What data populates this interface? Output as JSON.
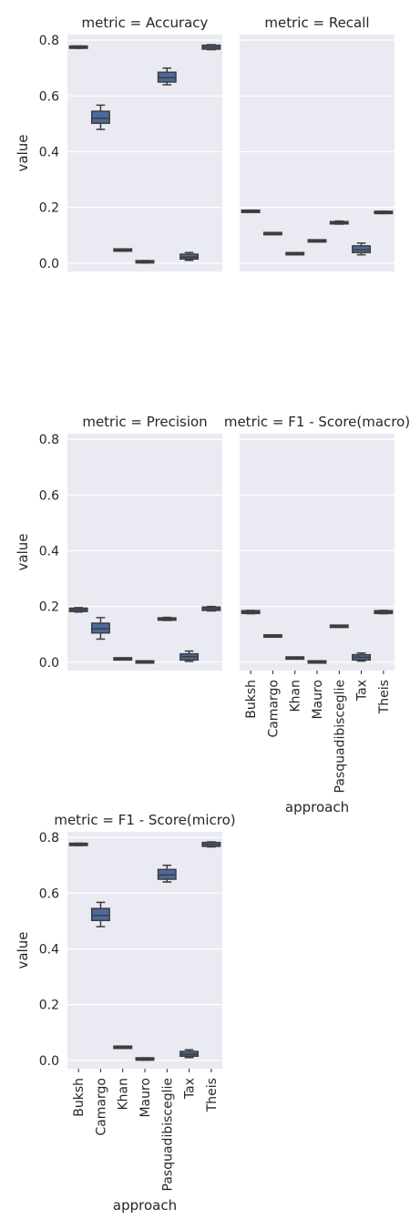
{
  "chart_data": [
    {
      "type": "box",
      "title": "metric = Accuracy",
      "ylabel": "value",
      "xlabel": "",
      "ylim": [
        -0.03,
        0.82
      ],
      "yticks": [
        "0.0",
        "0.2",
        "0.4",
        "0.6",
        "0.8"
      ],
      "show_x_tick_labels": false,
      "show_y_tick_labels": true,
      "categories": [
        "Buksh",
        "Camargo",
        "Khan",
        "Mauro",
        "Pasquadibisceglie",
        "Tax",
        "Theis"
      ],
      "boxes": [
        {
          "category": "Buksh",
          "min": 0.771,
          "q1": 0.773,
          "median": 0.775,
          "q3": 0.777,
          "max": 0.779
        },
        {
          "category": "Camargo",
          "min": 0.48,
          "q1": 0.502,
          "median": 0.52,
          "q3": 0.545,
          "max": 0.567
        },
        {
          "category": "Khan",
          "min": 0.043,
          "q1": 0.045,
          "median": 0.047,
          "q3": 0.049,
          "max": 0.051
        },
        {
          "category": "Mauro",
          "min": 0.001,
          "q1": 0.003,
          "median": 0.005,
          "q3": 0.007,
          "max": 0.009
        },
        {
          "category": "Pasquadibisceglie",
          "min": 0.64,
          "q1": 0.65,
          "median": 0.665,
          "q3": 0.685,
          "max": 0.7
        },
        {
          "category": "Tax",
          "min": 0.01,
          "q1": 0.015,
          "median": 0.022,
          "q3": 0.032,
          "max": 0.038
        },
        {
          "category": "Theis",
          "min": 0.766,
          "q1": 0.768,
          "median": 0.775,
          "q3": 0.782,
          "max": 0.784
        }
      ]
    },
    {
      "type": "box",
      "title": "metric = Recall",
      "ylabel": "",
      "xlabel": "",
      "ylim": [
        -0.03,
        0.82
      ],
      "yticks": [
        "0.0",
        "0.2",
        "0.4",
        "0.6",
        "0.8"
      ],
      "show_x_tick_labels": false,
      "show_y_tick_labels": false,
      "categories": [
        "Buksh",
        "Camargo",
        "Khan",
        "Mauro",
        "Pasquadibisceglie",
        "Tax",
        "Theis"
      ],
      "boxes": [
        {
          "category": "Buksh",
          "min": 0.183,
          "q1": 0.184,
          "median": 0.186,
          "q3": 0.188,
          "max": 0.19
        },
        {
          "category": "Camargo",
          "min": 0.104,
          "q1": 0.105,
          "median": 0.106,
          "q3": 0.107,
          "max": 0.108
        },
        {
          "category": "Khan",
          "min": 0.031,
          "q1": 0.032,
          "median": 0.034,
          "q3": 0.036,
          "max": 0.037
        },
        {
          "category": "Mauro",
          "min": 0.077,
          "q1": 0.078,
          "median": 0.08,
          "q3": 0.082,
          "max": 0.083
        },
        {
          "category": "Pasquadibisceglie",
          "min": 0.14,
          "q1": 0.141,
          "median": 0.145,
          "q3": 0.149,
          "max": 0.151
        },
        {
          "category": "Tax",
          "min": 0.03,
          "q1": 0.038,
          "median": 0.048,
          "q3": 0.062,
          "max": 0.072
        },
        {
          "category": "Theis",
          "min": 0.178,
          "q1": 0.179,
          "median": 0.182,
          "q3": 0.185,
          "max": 0.186
        }
      ]
    },
    {
      "type": "box",
      "title": "metric = Precision",
      "ylabel": "value",
      "xlabel": "",
      "ylim": [
        -0.03,
        0.82
      ],
      "yticks": [
        "0.0",
        "0.2",
        "0.4",
        "0.6",
        "0.8"
      ],
      "show_x_tick_labels": false,
      "show_y_tick_labels": true,
      "categories": [
        "Buksh",
        "Camargo",
        "Khan",
        "Mauro",
        "Pasquadibisceglie",
        "Tax",
        "Theis"
      ],
      "boxes": [
        {
          "category": "Buksh",
          "min": 0.18,
          "q1": 0.182,
          "median": 0.188,
          "q3": 0.194,
          "max": 0.196
        },
        {
          "category": "Camargo",
          "min": 0.083,
          "q1": 0.105,
          "median": 0.12,
          "q3": 0.14,
          "max": 0.16
        },
        {
          "category": "Khan",
          "min": 0.009,
          "q1": 0.01,
          "median": 0.012,
          "q3": 0.014,
          "max": 0.015
        },
        {
          "category": "Mauro",
          "min": 0.0,
          "q1": 0.0005,
          "median": 0.001,
          "q3": 0.0015,
          "max": 0.002
        },
        {
          "category": "Pasquadibisceglie",
          "min": 0.15,
          "q1": 0.151,
          "median": 0.155,
          "q3": 0.159,
          "max": 0.161
        },
        {
          "category": "Tax",
          "min": 0.003,
          "q1": 0.008,
          "median": 0.02,
          "q3": 0.03,
          "max": 0.04
        },
        {
          "category": "Theis",
          "min": 0.184,
          "q1": 0.186,
          "median": 0.192,
          "q3": 0.198,
          "max": 0.2
        }
      ]
    },
    {
      "type": "box",
      "title": "metric = F1 - Score(macro)",
      "ylabel": "",
      "xlabel": "approach",
      "ylim": [
        -0.03,
        0.82
      ],
      "yticks": [
        "0.0",
        "0.2",
        "0.4",
        "0.6",
        "0.8"
      ],
      "show_x_tick_labels": true,
      "show_y_tick_labels": false,
      "categories": [
        "Buksh",
        "Camargo",
        "Khan",
        "Mauro",
        "Pasquadibisceglie",
        "Tax",
        "Theis"
      ],
      "boxes": [
        {
          "category": "Buksh",
          "min": 0.174,
          "q1": 0.175,
          "median": 0.18,
          "q3": 0.185,
          "max": 0.186
        },
        {
          "category": "Camargo",
          "min": 0.091,
          "q1": 0.092,
          "median": 0.094,
          "q3": 0.096,
          "max": 0.097
        },
        {
          "category": "Khan",
          "min": 0.012,
          "q1": 0.013,
          "median": 0.015,
          "q3": 0.017,
          "max": 0.018
        },
        {
          "category": "Mauro",
          "min": 0.0,
          "q1": 0.0005,
          "median": 0.001,
          "q3": 0.0015,
          "max": 0.002
        },
        {
          "category": "Pasquadibisceglie",
          "min": 0.126,
          "q1": 0.127,
          "median": 0.129,
          "q3": 0.131,
          "max": 0.132
        },
        {
          "category": "Tax",
          "min": 0.004,
          "q1": 0.008,
          "median": 0.018,
          "q3": 0.027,
          "max": 0.033
        },
        {
          "category": "Theis",
          "min": 0.174,
          "q1": 0.175,
          "median": 0.18,
          "q3": 0.185,
          "max": 0.186
        }
      ]
    },
    {
      "type": "box",
      "title": "metric = F1 - Score(micro)",
      "ylabel": "value",
      "xlabel": "approach",
      "ylim": [
        -0.03,
        0.82
      ],
      "yticks": [
        "0.0",
        "0.2",
        "0.4",
        "0.6",
        "0.8"
      ],
      "show_x_tick_labels": true,
      "show_y_tick_labels": true,
      "categories": [
        "Buksh",
        "Camargo",
        "Khan",
        "Mauro",
        "Pasquadibisceglie",
        "Tax",
        "Theis"
      ],
      "boxes": [
        {
          "category": "Buksh",
          "min": 0.771,
          "q1": 0.773,
          "median": 0.775,
          "q3": 0.777,
          "max": 0.779
        },
        {
          "category": "Camargo",
          "min": 0.48,
          "q1": 0.502,
          "median": 0.52,
          "q3": 0.545,
          "max": 0.567
        },
        {
          "category": "Khan",
          "min": 0.043,
          "q1": 0.045,
          "median": 0.047,
          "q3": 0.049,
          "max": 0.051
        },
        {
          "category": "Mauro",
          "min": 0.001,
          "q1": 0.003,
          "median": 0.005,
          "q3": 0.007,
          "max": 0.009
        },
        {
          "category": "Pasquadibisceglie",
          "min": 0.64,
          "q1": 0.65,
          "median": 0.665,
          "q3": 0.685,
          "max": 0.7
        },
        {
          "category": "Tax",
          "min": 0.01,
          "q1": 0.015,
          "median": 0.022,
          "q3": 0.032,
          "max": 0.038
        },
        {
          "category": "Theis",
          "min": 0.766,
          "q1": 0.768,
          "median": 0.775,
          "q3": 0.782,
          "max": 0.784
        }
      ]
    }
  ],
  "colors": {
    "panel_background": "#eaeaf2",
    "gridline": "#ffffff",
    "box_fill": "#4c6a9b",
    "box_edge": "#3d3d3d",
    "text": "#262626"
  }
}
